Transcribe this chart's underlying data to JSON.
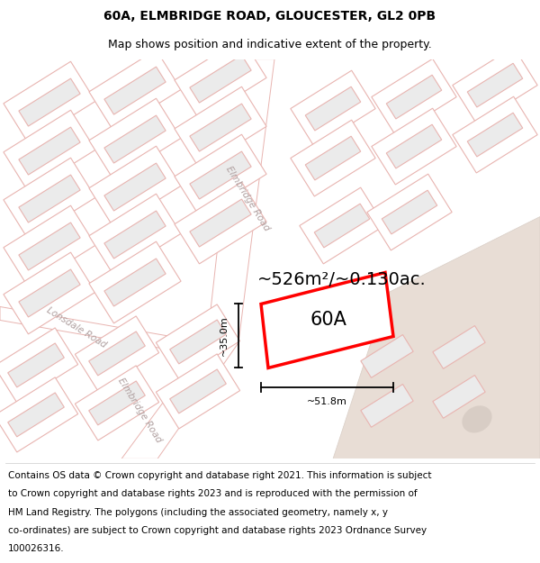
{
  "title": "60A, ELMBRIDGE ROAD, GLOUCESTER, GL2 0PB",
  "subtitle": "Map shows position and indicative extent of the property.",
  "footer_lines": [
    "Contains OS data © Crown copyright and database right 2021. This information is subject",
    "to Crown copyright and database rights 2023 and is reproduced with the permission of",
    "HM Land Registry. The polygons (including the associated geometry, namely x, y",
    "co-ordinates) are subject to Crown copyright and database rights 2023 Ordnance Survey",
    "100026316."
  ],
  "area_label": "~526m²/~0.130ac.",
  "property_label": "60A",
  "dim_width": "~51.8m",
  "dim_height": "~35.0m",
  "road_label_top": "Elmbridge Road",
  "road_label_bot": "Elmbridge Road",
  "road_label_lonsdale": "Lonsdale Road",
  "map_bg": "#ffffff",
  "building_fill": "#ebebeb",
  "building_edge": "#e8b4b0",
  "road_outline": "#e8b4b0",
  "plot_fill": "#ffffff",
  "plot_edge": "#ff0000",
  "tan_fill": "#e8ddd5",
  "tan_edge": "#d8cdc5",
  "title_fontsize": 10,
  "subtitle_fontsize": 9,
  "footer_fontsize": 7.5,
  "label_fontsize": 8,
  "area_fontsize": 14,
  "property_fontsize": 15,
  "road_fontsize": 7.5
}
